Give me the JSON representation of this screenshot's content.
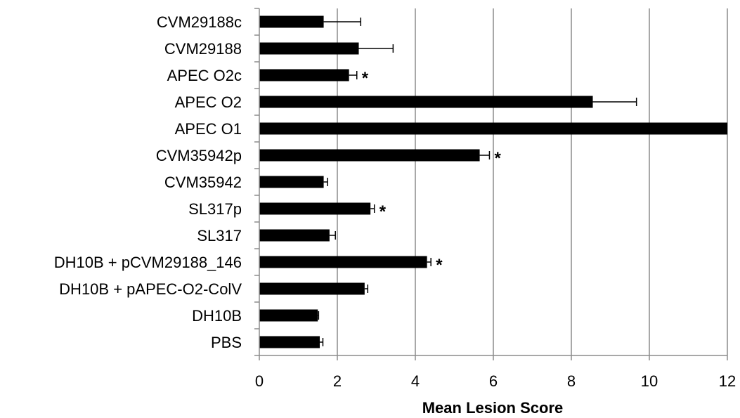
{
  "chart_data": {
    "type": "bar",
    "orientation": "horizontal",
    "categories": [
      "CVM29188c",
      "CVM29188",
      "APEC O2c",
      "APEC O2",
      "APEC O1",
      "CVM35942p",
      "CVM35942",
      "SL317p",
      "SL317",
      "DH10B + pCVM29188_146",
      "DH10B + pAPEC-O2-ColV",
      "DH10B",
      "PBS"
    ],
    "values": [
      1.65,
      2.55,
      2.3,
      8.55,
      12.0,
      5.65,
      1.65,
      2.85,
      1.8,
      4.3,
      2.7,
      1.5,
      1.55
    ],
    "errors": [
      0.95,
      0.88,
      0.2,
      1.12,
      0,
      0.25,
      0.1,
      0.1,
      0.15,
      0.1,
      0.08,
      0.02,
      0.08
    ],
    "significance": [
      "",
      "",
      "*",
      "",
      "",
      "*",
      "",
      "*",
      "",
      "*",
      "",
      "",
      ""
    ],
    "xlabel": "Mean Lesion Score",
    "ylabel": "",
    "title": "",
    "xlim": [
      0,
      12
    ],
    "xticks": [
      "0",
      "2",
      "4",
      "6",
      "8",
      "10",
      "12"
    ],
    "grid": "vertical",
    "bar_color": "#000000",
    "grid_color": "#8c8c8c"
  }
}
